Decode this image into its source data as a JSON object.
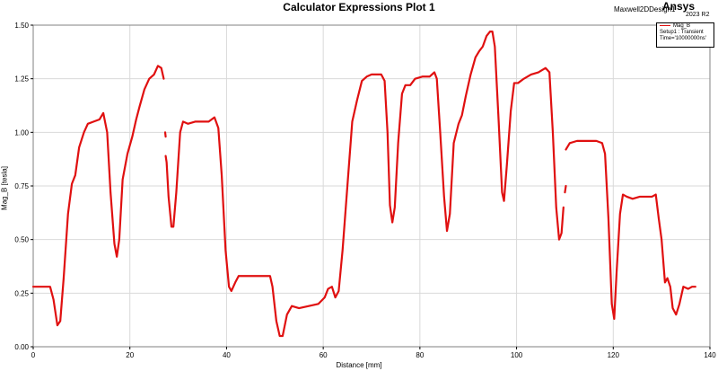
{
  "header": {
    "title": "Calculator Expressions Plot 1",
    "design_name": "Maxwell2DDesign1",
    "brand": "Ansys",
    "brand_version": "2023 R2"
  },
  "legend": {
    "series_label": "Mag_B",
    "setup_line": "Setup1 : Transient",
    "time_line": "Time='10000000ns'"
  },
  "colors": {
    "series": "#e01010",
    "grid": "#d9d9d9",
    "axis": "#000000"
  },
  "chart_data": {
    "type": "line",
    "title": "Calculator Expressions Plot 1",
    "xlabel": "Distance [mm]",
    "ylabel": "Mag_B [tesla]",
    "xlim": [
      0,
      140
    ],
    "ylim": [
      0,
      1.5
    ],
    "x_ticks": [
      0,
      20,
      40,
      60,
      80,
      100,
      120,
      140
    ],
    "y_ticks": [
      0.0,
      0.25,
      0.5,
      0.75,
      1.0,
      1.25,
      1.5
    ],
    "x_tick_labels": [
      "0",
      "20",
      "40",
      "60",
      "80",
      "100",
      "120",
      "140"
    ],
    "y_tick_labels": [
      "0.00",
      "0.25",
      "0.50",
      "0.75",
      "1.00",
      "1.25",
      "1.50"
    ],
    "grid": true,
    "legend_position": "top-right",
    "series": [
      {
        "name": "Mag_B",
        "segments": [
          [
            [
              0.0,
              0.28
            ],
            [
              1.5,
              0.28
            ],
            [
              3.5,
              0.28
            ],
            [
              4.2,
              0.22
            ],
            [
              5.0,
              0.1
            ],
            [
              5.6,
              0.12
            ],
            [
              6.3,
              0.32
            ],
            [
              7.2,
              0.62
            ],
            [
              8.0,
              0.76
            ],
            [
              8.7,
              0.8
            ],
            [
              9.5,
              0.93
            ],
            [
              10.5,
              1.0
            ],
            [
              11.3,
              1.04
            ],
            [
              12.5,
              1.05
            ],
            [
              13.7,
              1.06
            ],
            [
              14.5,
              1.09
            ],
            [
              15.3,
              1.0
            ],
            [
              16.0,
              0.72
            ],
            [
              16.8,
              0.48
            ],
            [
              17.3,
              0.42
            ],
            [
              17.8,
              0.5
            ],
            [
              18.5,
              0.78
            ],
            [
              19.5,
              0.9
            ],
            [
              20.5,
              0.98
            ],
            [
              21.3,
              1.06
            ],
            [
              22.0,
              1.12
            ],
            [
              23.0,
              1.2
            ],
            [
              24.0,
              1.25
            ],
            [
              25.0,
              1.27
            ],
            [
              25.8,
              1.31
            ],
            [
              26.5,
              1.3
            ],
            [
              27.0,
              1.25
            ]
          ],
          [
            [
              27.3,
              1.0
            ],
            [
              27.4,
              0.98
            ]
          ],
          [
            [
              27.4,
              0.89
            ],
            [
              27.6,
              0.86
            ],
            [
              28.0,
              0.7
            ],
            [
              28.6,
              0.56
            ],
            [
              29.0,
              0.56
            ],
            [
              29.6,
              0.72
            ],
            [
              30.4,
              1.0
            ],
            [
              31.0,
              1.05
            ],
            [
              32.0,
              1.04
            ],
            [
              33.5,
              1.05
            ],
            [
              35.0,
              1.05
            ],
            [
              36.3,
              1.05
            ],
            [
              37.5,
              1.07
            ],
            [
              38.3,
              1.02
            ],
            [
              39.0,
              0.8
            ],
            [
              39.8,
              0.45
            ],
            [
              40.5,
              0.28
            ],
            [
              41.0,
              0.26
            ],
            [
              41.8,
              0.3
            ],
            [
              42.5,
              0.33
            ],
            [
              44.0,
              0.33
            ],
            [
              47.0,
              0.33
            ],
            [
              49.0,
              0.33
            ],
            [
              49.5,
              0.28
            ],
            [
              50.3,
              0.12
            ],
            [
              51.0,
              0.05
            ],
            [
              51.6,
              0.05
            ],
            [
              52.5,
              0.15
            ],
            [
              53.5,
              0.19
            ],
            [
              55.0,
              0.18
            ],
            [
              57.0,
              0.19
            ],
            [
              59.0,
              0.2
            ],
            [
              60.3,
              0.23
            ],
            [
              61.0,
              0.27
            ],
            [
              61.8,
              0.28
            ],
            [
              62.5,
              0.23
            ],
            [
              63.2,
              0.26
            ],
            [
              64.0,
              0.45
            ],
            [
              65.0,
              0.75
            ],
            [
              66.0,
              1.05
            ],
            [
              67.0,
              1.15
            ],
            [
              68.0,
              1.24
            ],
            [
              69.0,
              1.26
            ],
            [
              70.0,
              1.27
            ],
            [
              71.0,
              1.27
            ],
            [
              72.0,
              1.27
            ],
            [
              72.7,
              1.24
            ],
            [
              73.3,
              1.0
            ],
            [
              73.8,
              0.66
            ],
            [
              74.3,
              0.58
            ],
            [
              74.8,
              0.65
            ],
            [
              75.5,
              0.95
            ],
            [
              76.3,
              1.18
            ],
            [
              77.0,
              1.22
            ],
            [
              78.0,
              1.22
            ],
            [
              79.0,
              1.25
            ],
            [
              80.5,
              1.26
            ],
            [
              82.0,
              1.26
            ],
            [
              83.0,
              1.28
            ],
            [
              83.5,
              1.25
            ],
            [
              84.2,
              1.0
            ],
            [
              85.0,
              0.7
            ],
            [
              85.6,
              0.54
            ],
            [
              86.2,
              0.62
            ],
            [
              87.0,
              0.95
            ],
            [
              88.0,
              1.04
            ],
            [
              88.7,
              1.08
            ],
            [
              89.5,
              1.17
            ],
            [
              90.5,
              1.27
            ],
            [
              91.5,
              1.35
            ],
            [
              92.3,
              1.38
            ],
            [
              93.0,
              1.4
            ],
            [
              93.8,
              1.45
            ],
            [
              94.5,
              1.47
            ],
            [
              95.0,
              1.47
            ],
            [
              95.5,
              1.4
            ],
            [
              96.3,
              1.05
            ],
            [
              97.0,
              0.72
            ],
            [
              97.4,
              0.68
            ],
            [
              98.0,
              0.85
            ],
            [
              98.8,
              1.1
            ],
            [
              99.5,
              1.23
            ],
            [
              100.3,
              1.23
            ],
            [
              101.5,
              1.25
            ],
            [
              103.0,
              1.27
            ],
            [
              104.5,
              1.28
            ],
            [
              106.0,
              1.3
            ],
            [
              106.8,
              1.28
            ],
            [
              107.5,
              1.0
            ],
            [
              108.2,
              0.65
            ],
            [
              108.8,
              0.5
            ],
            [
              109.3,
              0.53
            ],
            [
              109.7,
              0.65
            ]
          ],
          [
            [
              110.0,
              0.72
            ],
            [
              110.2,
              0.75
            ]
          ],
          [
            [
              110.2,
              0.92
            ],
            [
              111.0,
              0.95
            ],
            [
              112.5,
              0.96
            ],
            [
              114.5,
              0.96
            ],
            [
              116.5,
              0.96
            ],
            [
              117.7,
              0.95
            ],
            [
              118.3,
              0.9
            ],
            [
              119.0,
              0.6
            ],
            [
              119.7,
              0.2
            ],
            [
              120.2,
              0.13
            ],
            [
              120.7,
              0.35
            ],
            [
              121.4,
              0.62
            ],
            [
              122.0,
              0.71
            ],
            [
              122.8,
              0.7
            ],
            [
              124.0,
              0.69
            ],
            [
              125.5,
              0.7
            ],
            [
              127.0,
              0.7
            ],
            [
              128.0,
              0.7
            ],
            [
              128.8,
              0.71
            ],
            [
              129.4,
              0.6
            ],
            [
              130.0,
              0.5
            ],
            [
              130.7,
              0.3
            ],
            [
              131.2,
              0.32
            ],
            [
              131.8,
              0.28
            ],
            [
              132.3,
              0.18
            ],
            [
              133.0,
              0.15
            ],
            [
              133.7,
              0.2
            ],
            [
              134.5,
              0.28
            ],
            [
              135.5,
              0.27
            ],
            [
              136.3,
              0.28
            ],
            [
              137.0,
              0.28
            ]
          ]
        ]
      }
    ]
  }
}
